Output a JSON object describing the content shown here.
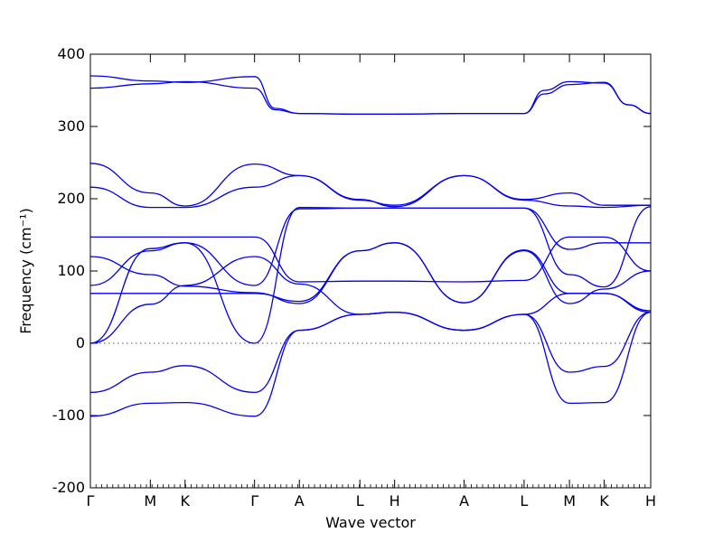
{
  "chart_data": {
    "type": "line",
    "title": "",
    "xlabel": "Wave vector",
    "ylabel": "Frequency (cm⁻¹)",
    "ylim": [
      -200,
      400
    ],
    "yticks": [
      -200,
      -100,
      0,
      100,
      200,
      300,
      400
    ],
    "grid": false,
    "legend": "none",
    "line_color": "#0000ee",
    "xlim": [
      0,
      1
    ],
    "kpoints": [
      {
        "label": "Γ",
        "x": 0.0
      },
      {
        "label": "M",
        "x": 0.107
      },
      {
        "label": "K",
        "x": 0.169
      },
      {
        "label": "Γ",
        "x": 0.293
      },
      {
        "label": "A",
        "x": 0.373
      },
      {
        "label": "L",
        "x": 0.481
      },
      {
        "label": "H",
        "x": 0.543
      },
      {
        "label": "A",
        "x": 0.667
      },
      {
        "label": "L",
        "x": 0.774
      },
      {
        "label": "M",
        "x": 0.855
      },
      {
        "label": "K",
        "x": 0.917
      },
      {
        "label": "H",
        "x": 1.0
      }
    ],
    "series": [
      {
        "values": [
          [
            0,
            370
          ],
          [
            0.107,
            363
          ],
          [
            0.169,
            361
          ],
          [
            0.293,
            369
          ],
          [
            0.33,
            325
          ],
          [
            0.373,
            318
          ],
          [
            0.481,
            317
          ],
          [
            0.543,
            317
          ],
          [
            0.667,
            318
          ],
          [
            0.774,
            318
          ],
          [
            0.81,
            350
          ],
          [
            0.855,
            362
          ],
          [
            0.917,
            360
          ],
          [
            0.96,
            330
          ],
          [
            1,
            318
          ]
        ]
      },
      {
        "values": [
          [
            0,
            353
          ],
          [
            0.107,
            359
          ],
          [
            0.169,
            362
          ],
          [
            0.293,
            353
          ],
          [
            0.33,
            323
          ],
          [
            0.373,
            318
          ],
          [
            0.481,
            317
          ],
          [
            0.543,
            317
          ],
          [
            0.667,
            318
          ],
          [
            0.774,
            318
          ],
          [
            0.81,
            345
          ],
          [
            0.855,
            358
          ],
          [
            0.917,
            361
          ],
          [
            0.96,
            330
          ],
          [
            1,
            318
          ]
        ]
      },
      {
        "values": [
          [
            0,
            249
          ],
          [
            0.107,
            208
          ],
          [
            0.169,
            190
          ],
          [
            0.293,
            248
          ],
          [
            0.373,
            232
          ],
          [
            0.481,
            199
          ],
          [
            0.543,
            189
          ],
          [
            0.667,
            232
          ],
          [
            0.774,
            199
          ],
          [
            0.855,
            208
          ],
          [
            0.917,
            191
          ],
          [
            1,
            191
          ]
        ]
      },
      {
        "values": [
          [
            0,
            216
          ],
          [
            0.107,
            188
          ],
          [
            0.169,
            188
          ],
          [
            0.293,
            216
          ],
          [
            0.373,
            232
          ],
          [
            0.481,
            198
          ],
          [
            0.543,
            191
          ],
          [
            0.667,
            232
          ],
          [
            0.774,
            198
          ],
          [
            0.855,
            190
          ],
          [
            0.917,
            188
          ],
          [
            1,
            191
          ]
        ]
      },
      {
        "values": [
          [
            0,
            147
          ],
          [
            0.107,
            147
          ],
          [
            0.169,
            147
          ],
          [
            0.293,
            147
          ],
          [
            0.373,
            85
          ],
          [
            0.481,
            86
          ],
          [
            0.543,
            86
          ],
          [
            0.667,
            85
          ],
          [
            0.774,
            87
          ],
          [
            0.855,
            147
          ],
          [
            0.917,
            147
          ],
          [
            1,
            100
          ]
        ]
      },
      {
        "values": [
          [
            0,
            120
          ],
          [
            0.107,
            95
          ],
          [
            0.169,
            79
          ],
          [
            0.293,
            70
          ],
          [
            0.373,
            55
          ],
          [
            0.481,
            128
          ],
          [
            0.543,
            139
          ],
          [
            0.667,
            56
          ],
          [
            0.774,
            128
          ],
          [
            0.855,
            55
          ],
          [
            0.917,
            75
          ],
          [
            1,
            100
          ]
        ]
      },
      {
        "values": [
          [
            0,
            80
          ],
          [
            0.107,
            128
          ],
          [
            0.169,
            139
          ],
          [
            0.293,
            80
          ],
          [
            0.373,
            186
          ],
          [
            0.481,
            187
          ],
          [
            0.543,
            187
          ],
          [
            0.667,
            187
          ],
          [
            0.774,
            187
          ],
          [
            0.855,
            130
          ],
          [
            0.917,
            139
          ],
          [
            1,
            139
          ]
        ]
      },
      {
        "values": [
          [
            0,
            0
          ],
          [
            0.107,
            131
          ],
          [
            0.169,
            139
          ],
          [
            0.293,
            0
          ],
          [
            0.373,
            188
          ],
          [
            0.481,
            187
          ],
          [
            0.543,
            187
          ],
          [
            0.667,
            187
          ],
          [
            0.774,
            187
          ],
          [
            0.855,
            95
          ],
          [
            0.917,
            78
          ],
          [
            1,
            189
          ]
        ]
      },
      {
        "values": [
          [
            0,
            69
          ],
          [
            0.107,
            69
          ],
          [
            0.169,
            69
          ],
          [
            0.293,
            69
          ],
          [
            0.373,
            58
          ],
          [
            0.481,
            128
          ],
          [
            0.543,
            139
          ],
          [
            0.667,
            56
          ],
          [
            0.774,
            129
          ],
          [
            0.855,
            69
          ],
          [
            0.917,
            69
          ],
          [
            1,
            45
          ]
        ]
      },
      {
        "values": [
          [
            0,
            0
          ],
          [
            0.107,
            54
          ],
          [
            0.169,
            80
          ],
          [
            0.293,
            120
          ],
          [
            0.373,
            82
          ],
          [
            0.481,
            40
          ],
          [
            0.543,
            43
          ],
          [
            0.667,
            18
          ],
          [
            0.774,
            40
          ],
          [
            0.855,
            69
          ],
          [
            0.917,
            69
          ],
          [
            1,
            43
          ]
        ]
      },
      {
        "values": [
          [
            0,
            -68
          ],
          [
            0.107,
            -40
          ],
          [
            0.169,
            -31
          ],
          [
            0.293,
            -68
          ],
          [
            0.373,
            18
          ],
          [
            0.481,
            40
          ],
          [
            0.543,
            43
          ],
          [
            0.667,
            18
          ],
          [
            0.774,
            40
          ],
          [
            0.855,
            -40
          ],
          [
            0.917,
            -32
          ],
          [
            1,
            43
          ]
        ]
      },
      {
        "values": [
          [
            0,
            -101
          ],
          [
            0.107,
            -83
          ],
          [
            0.169,
            -82
          ],
          [
            0.293,
            -101
          ],
          [
            0.373,
            18
          ],
          [
            0.481,
            40
          ],
          [
            0.543,
            43
          ],
          [
            0.667,
            18
          ],
          [
            0.774,
            40
          ],
          [
            0.855,
            -83
          ],
          [
            0.917,
            -82
          ],
          [
            1,
            43
          ]
        ]
      }
    ]
  }
}
